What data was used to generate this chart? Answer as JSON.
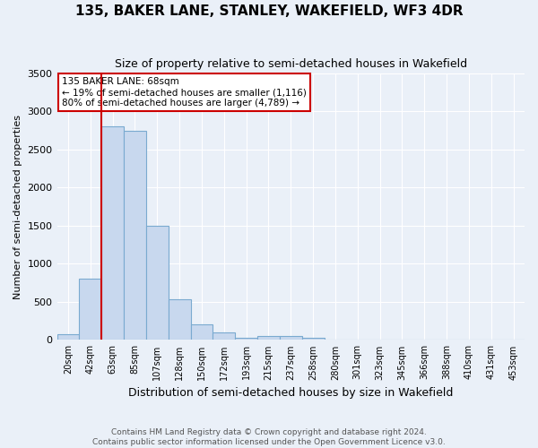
{
  "title": "135, BAKER LANE, STANLEY, WAKEFIELD, WF3 4DR",
  "subtitle": "Size of property relative to semi-detached houses in Wakefield",
  "xlabel": "Distribution of semi-detached houses by size in Wakefield",
  "ylabel": "Number of semi-detached properties",
  "footer_line1": "Contains HM Land Registry data © Crown copyright and database right 2024.",
  "footer_line2": "Contains public sector information licensed under the Open Government Licence v3.0.",
  "annotation_line1": "135 BAKER LANE: 68sqm",
  "annotation_line2": "← 19% of semi-detached houses are smaller (1,116)",
  "annotation_line3": "80% of semi-detached houses are larger (4,789) →",
  "bin_labels": [
    "20sqm",
    "42sqm",
    "63sqm",
    "85sqm",
    "107sqm",
    "128sqm",
    "150sqm",
    "172sqm",
    "193sqm",
    "215sqm",
    "237sqm",
    "258sqm",
    "280sqm",
    "301sqm",
    "323sqm",
    "345sqm",
    "366sqm",
    "388sqm",
    "410sqm",
    "431sqm",
    "453sqm"
  ],
  "counts": [
    80,
    800,
    2800,
    2750,
    1500,
    530,
    200,
    100,
    30,
    50,
    50,
    30,
    0,
    0,
    0,
    0,
    0,
    0,
    0,
    0,
    0
  ],
  "bar_color": "#c8d8ee",
  "bar_edge_color": "#7aaad0",
  "red_line_bin_index": 2,
  "red_color": "#cc0000",
  "background_color": "#eaf0f8",
  "grid_color": "#ffffff",
  "ylim": [
    0,
    3500
  ],
  "yticks": [
    0,
    500,
    1000,
    1500,
    2000,
    2500,
    3000,
    3500
  ]
}
